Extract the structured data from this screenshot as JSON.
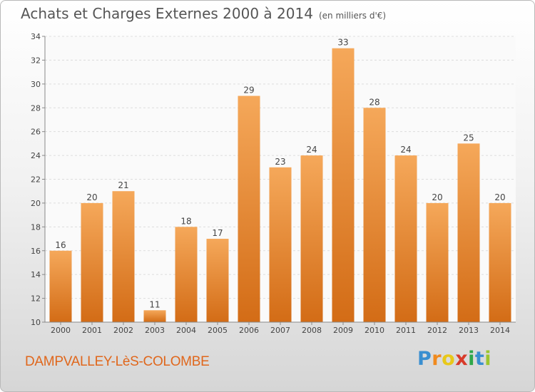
{
  "title": "Achats et Charges Externes 2000 à 2014",
  "unit": "(en milliers d'€)",
  "place": "DAMPVALLEY-LèS-COLOMBE",
  "logo": {
    "letters": [
      "P",
      "r",
      "o",
      "x",
      "i",
      "t",
      "i"
    ],
    "colors": [
      "#3a8fd0",
      "#f08a1e",
      "#e8c81a",
      "#d83a2a",
      "#2fa84a",
      "#3a8fd0",
      "#9dc62e"
    ]
  },
  "colors": {
    "bar_top": "#f5a85a",
    "bar_bottom": "#d36c16",
    "axis_text": "#444444",
    "grid": "#dddddd"
  },
  "chart_data": {
    "type": "bar",
    "categories": [
      "2000",
      "2001",
      "2002",
      "2003",
      "2004",
      "2005",
      "2006",
      "2007",
      "2008",
      "2009",
      "2010",
      "2011",
      "2012",
      "2013",
      "2014"
    ],
    "values": [
      16,
      20,
      21,
      11,
      18,
      17,
      29,
      23,
      24,
      33,
      28,
      24,
      20,
      25,
      20
    ],
    "ylim": [
      10,
      34
    ],
    "yticks": [
      10,
      12,
      14,
      16,
      18,
      20,
      22,
      24,
      26,
      28,
      30,
      32,
      34
    ],
    "grid": "horizontal dashed",
    "data_labels": true
  }
}
